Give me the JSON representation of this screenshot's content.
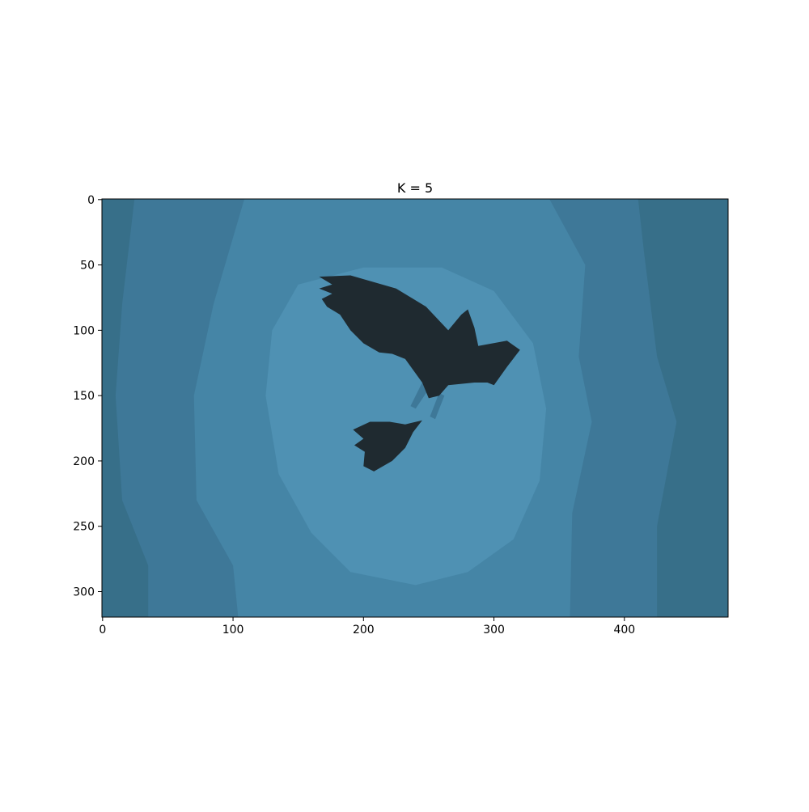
{
  "chart_data": {
    "type": "image",
    "title": "K = 5",
    "xlim": [
      -0.5,
      479.5
    ],
    "ylim": [
      319.5,
      -0.5
    ],
    "xticks": [
      0,
      100,
      200,
      300,
      400
    ],
    "yticks": [
      0,
      50,
      100,
      150,
      200,
      250,
      300
    ],
    "colors": [
      "#376f89",
      "#3e7898",
      "#4585a6",
      "#4f91b3",
      "#1f2a30"
    ]
  }
}
